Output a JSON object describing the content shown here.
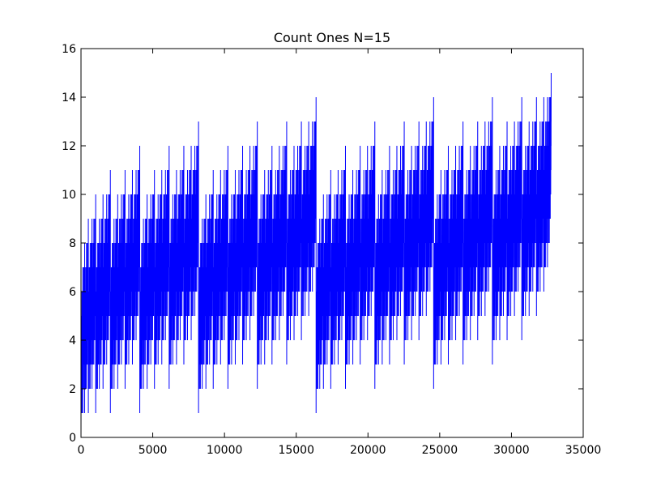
{
  "chart_data": {
    "type": "line",
    "title": "Count Ones N=15",
    "xlabel": "",
    "ylabel": "",
    "xlim": [
      0,
      35000
    ],
    "ylim": [
      0,
      16
    ],
    "x_ticks": [
      0,
      5000,
      10000,
      15000,
      20000,
      25000,
      30000,
      35000
    ],
    "y_ticks": [
      0,
      2,
      4,
      6,
      8,
      10,
      12,
      14,
      16
    ],
    "x_tick_labels": [
      "0",
      "5000",
      "10000",
      "15000",
      "20000",
      "25000",
      "30000",
      "35000"
    ],
    "y_tick_labels": [
      "0",
      "2",
      "4",
      "6",
      "8",
      "10",
      "12",
      "14",
      "16"
    ],
    "grid": false,
    "legend": "none",
    "series": [
      {
        "color": "#0000ff",
        "x_start": 0,
        "x_step": 1,
        "n_points": 32768,
        "values_rule": "popcount(x) for x = 0 .. 32767"
      }
    ]
  }
}
